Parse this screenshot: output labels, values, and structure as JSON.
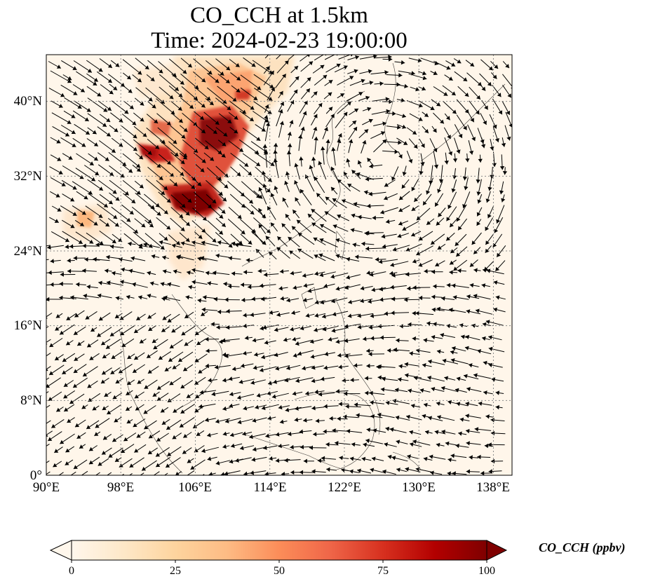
{
  "title": {
    "line1": "CO_CCH at 1.5km",
    "line2": "Time: 2024-02-23 19:00:00"
  },
  "map": {
    "lon_range": [
      90,
      140
    ],
    "lat_range": [
      0,
      45
    ],
    "lon_ticks": [
      "90°E",
      "98°E",
      "106°E",
      "114°E",
      "122°E",
      "130°E",
      "138°E"
    ],
    "lat_ticks": [
      "0°",
      "8°N",
      "16°N",
      "24°N",
      "32°N",
      "40°N"
    ],
    "gridlines": "dotted",
    "field": "CO_CCH",
    "wind_vectors": "quiver"
  },
  "colorbar": {
    "label": "CO_CCH (ppbv)",
    "ticks": [
      "0",
      "25",
      "50",
      "75",
      "100"
    ],
    "range": [
      0,
      100
    ],
    "extend": "both",
    "colormap": "OrRd",
    "colors": [
      "#fff7ec",
      "#fee8c8",
      "#fdd49e",
      "#fdbb84",
      "#fc8d59",
      "#ef6548",
      "#d7301f",
      "#b30000",
      "#7f0000"
    ]
  }
}
